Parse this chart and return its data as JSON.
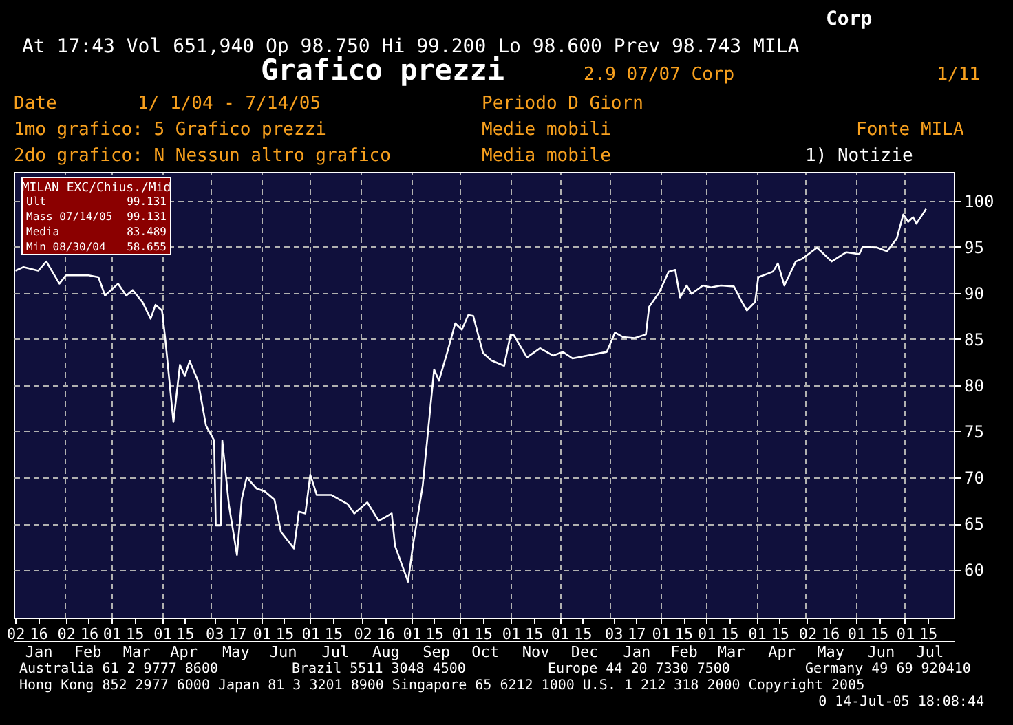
{
  "chart_data": {
    "type": "line",
    "title": "Grafico prezzi",
    "annotations": [
      "Corp",
      "At 17:43 Vol 651,940 Op 98.750 Hi 99.200 Lo 98.600 Prev 98.743 MILA",
      "2.9 07/07 Corp",
      "1/11",
      "Date",
      "1/ 1/04 - 7/14/05",
      "Periodo D Giorn",
      "1mo grafico: 5 Grafico prezzi",
      "Medie mobili",
      "Fonte MILA",
      "2do grafico: N Nessun altro grafico",
      "Media mobile",
      "1) Notizie",
      "MILAN EXC/Chius./Mid",
      "Ult",
      "99.131",
      "Mass 07/14/05",
      "99.131",
      "Media",
      "83.489",
      "Min 08/30/04",
      "58.655",
      "Australia 61 2 9777 8600",
      "Brazil 5511 3048 4500",
      "Europe 44 20 7330 7500",
      "Germany 49 69 920410",
      "Hong Kong 852 2977 6000 Japan 81 3 3201 8900 Singapore 65 6212 1000 U.S. 1 212 318 2000 Copyright 2005",
      "0 14-Jul-05 18:08:44"
    ],
    "x": [
      "2004-01-02",
      "2004-01-07",
      "2004-01-16",
      "2004-01-21",
      "2004-01-29",
      "2004-02-02",
      "2004-02-16",
      "2004-02-22",
      "2004-02-26",
      "2004-03-05",
      "2004-03-10",
      "2004-03-14",
      "2004-03-20",
      "2004-03-25",
      "2004-03-28",
      "2004-04-01",
      "2004-04-03",
      "2004-04-08",
      "2004-04-12",
      "2004-04-15",
      "2004-04-18",
      "2004-04-23",
      "2004-04-28",
      "2004-05-03",
      "2004-05-04",
      "2004-05-07",
      "2004-05-08",
      "2004-05-12",
      "2004-05-17",
      "2004-05-20",
      "2004-05-23",
      "2004-05-29",
      "2004-06-03",
      "2004-06-09",
      "2004-06-13",
      "2004-06-21",
      "2004-06-24",
      "2004-06-28",
      "2004-07-01",
      "2004-07-05",
      "2004-07-14",
      "2004-07-24",
      "2004-07-28",
      "2004-08-05",
      "2004-08-12",
      "2004-08-20",
      "2004-08-22",
      "2004-08-30",
      "2004-09-02",
      "2004-09-08",
      "2004-09-15",
      "2004-09-18",
      "2004-09-23",
      "2004-09-28",
      "2004-10-02",
      "2004-10-06",
      "2004-10-09",
      "2004-10-15",
      "2004-10-20",
      "2004-10-28",
      "2004-11-01",
      "2004-11-03",
      "2004-11-11",
      "2004-11-19",
      "2004-11-27",
      "2004-12-03",
      "2004-12-09",
      "2004-12-30",
      "2005-01-04",
      "2005-01-09",
      "2005-01-16",
      "2005-01-23",
      "2005-01-25",
      "2005-01-31",
      "2005-02-06",
      "2005-02-10",
      "2005-02-13",
      "2005-02-17",
      "2005-02-20",
      "2005-02-27",
      "2005-03-04",
      "2005-03-10",
      "2005-03-18",
      "2005-03-23",
      "2005-03-26",
      "2005-03-31",
      "2005-04-02",
      "2005-04-11",
      "2005-04-14",
      "2005-04-18",
      "2005-04-25",
      "2005-04-29",
      "2005-05-08",
      "2005-05-17",
      "2005-05-26",
      "2005-06-03",
      "2005-06-05",
      "2005-06-14",
      "2005-06-20",
      "2005-06-26",
      "2005-06-30",
      "2005-07-03",
      "2005-07-06",
      "2005-07-08",
      "2005-07-14"
    ],
    "series": [
      {
        "color": "#ffffff",
        "values": [
          92.4,
          92.8,
          92.4,
          93.4,
          91.0,
          91.9,
          91.9,
          91.7,
          89.7,
          91.0,
          89.7,
          90.3,
          89.0,
          87.2,
          88.7,
          88.1,
          85.0,
          76.0,
          82.2,
          81.0,
          82.6,
          80.5,
          75.6,
          74.0,
          64.8,
          64.8,
          74.0,
          67.1,
          61.6,
          67.7,
          70.0,
          68.8,
          68.5,
          67.6,
          64.1,
          62.3,
          66.3,
          66.1,
          70.3,
          68.1,
          68.1,
          67.1,
          66.1,
          67.3,
          65.3,
          66.1,
          62.6,
          58.7,
          62.6,
          69.1,
          81.7,
          80.5,
          83.5,
          86.7,
          86.0,
          87.6,
          87.5,
          83.5,
          82.7,
          82.1,
          85.5,
          85.4,
          83.0,
          84.0,
          83.2,
          83.6,
          82.9,
          83.6,
          85.7,
          85.2,
          85.1,
          85.5,
          88.5,
          90.0,
          92.3,
          92.5,
          89.5,
          90.8,
          89.9,
          90.8,
          90.6,
          90.8,
          90.7,
          89.0,
          88.1,
          89.0,
          91.7,
          92.3,
          93.2,
          90.8,
          93.4,
          93.7,
          94.9,
          93.4,
          94.4,
          94.2,
          95.0,
          94.9,
          94.5,
          95.9,
          98.5,
          97.7,
          98.2,
          97.5,
          99.1
        ]
      }
    ],
    "xlim": [
      "2004-01-01",
      "2005-07-31"
    ],
    "xticks": [
      {
        "value": "2004-01-02",
        "label": "02"
      },
      {
        "value": "2004-01-16",
        "label": "16"
      },
      {
        "value": "2004-02-02",
        "label": "02"
      },
      {
        "value": "2004-02-16",
        "label": "16"
      },
      {
        "value": "2004-03-01",
        "label": "01"
      },
      {
        "value": "2004-03-15",
        "label": "15"
      },
      {
        "value": "2004-04-01",
        "label": "01"
      },
      {
        "value": "2004-04-15",
        "label": "15"
      },
      {
        "value": "2004-05-03",
        "label": "03"
      },
      {
        "value": "2004-05-17",
        "label": "17"
      },
      {
        "value": "2004-06-01",
        "label": "01"
      },
      {
        "value": "2004-06-15",
        "label": "15"
      },
      {
        "value": "2004-07-01",
        "label": "01"
      },
      {
        "value": "2004-07-15",
        "label": "15"
      },
      {
        "value": "2004-08-02",
        "label": "02"
      },
      {
        "value": "2004-08-16",
        "label": "16"
      },
      {
        "value": "2004-09-01",
        "label": "01"
      },
      {
        "value": "2004-09-15",
        "label": "15"
      },
      {
        "value": "2004-10-01",
        "label": "01"
      },
      {
        "value": "2004-10-15",
        "label": "15"
      },
      {
        "value": "2004-11-01",
        "label": "01"
      },
      {
        "value": "2004-11-15",
        "label": "15"
      },
      {
        "value": "2004-12-01",
        "label": "01"
      },
      {
        "value": "2004-12-15",
        "label": "15"
      },
      {
        "value": "2005-01-03",
        "label": "03"
      },
      {
        "value": "2005-01-17",
        "label": "17"
      },
      {
        "value": "2005-02-01",
        "label": "01"
      },
      {
        "value": "2005-02-15",
        "label": "15"
      },
      {
        "value": "2005-03-01",
        "label": "01"
      },
      {
        "value": "2005-03-15",
        "label": "15"
      },
      {
        "value": "2005-04-01",
        "label": "01"
      },
      {
        "value": "2005-04-15",
        "label": "15"
      },
      {
        "value": "2005-05-02",
        "label": "02"
      },
      {
        "value": "2005-05-16",
        "label": "16"
      },
      {
        "value": "2005-06-01",
        "label": "01"
      },
      {
        "value": "2005-06-15",
        "label": "15"
      },
      {
        "value": "2005-07-01",
        "label": "01"
      },
      {
        "value": "2005-07-15",
        "label": "15"
      }
    ],
    "x2lim": [
      "2004-01-01",
      "2005-07-31"
    ],
    "x2ticks": [
      {
        "value": "2004-01-16",
        "label": "Jan"
      },
      {
        "value": "2004-02-15",
        "label": "Feb"
      },
      {
        "value": "2004-03-16",
        "label": "Mar"
      },
      {
        "value": "2004-04-14",
        "label": "Apr"
      },
      {
        "value": "2004-05-16",
        "label": "May"
      },
      {
        "value": "2004-06-14",
        "label": "Jun"
      },
      {
        "value": "2004-07-16",
        "label": "Jul"
      },
      {
        "value": "2004-08-16",
        "label": "Aug"
      },
      {
        "value": "2004-09-16",
        "label": "Sep"
      },
      {
        "value": "2004-10-16",
        "label": "Oct"
      },
      {
        "value": "2004-11-16",
        "label": "Nov"
      },
      {
        "value": "2004-12-16",
        "label": "Dec"
      },
      {
        "value": "2005-01-17",
        "label": "Jan"
      },
      {
        "value": "2005-02-15",
        "label": "Feb"
      },
      {
        "value": "2005-03-16",
        "label": "Mar"
      },
      {
        "value": "2005-04-16",
        "label": "Apr"
      },
      {
        "value": "2005-05-16",
        "label": "May"
      },
      {
        "value": "2005-06-16",
        "label": "Jun"
      },
      {
        "value": "2005-07-16",
        "label": "Jul"
      },
      {
        "value": "2004-02-01",
        "label": null
      },
      {
        "value": "2004-03-01",
        "label": null
      },
      {
        "value": "2004-04-01",
        "label": null
      },
      {
        "value": "2004-05-01",
        "label": null
      },
      {
        "value": "2004-06-01",
        "label": null
      },
      {
        "value": "2004-07-01",
        "label": null
      },
      {
        "value": "2004-08-01",
        "label": null
      },
      {
        "value": "2004-09-01",
        "label": null
      },
      {
        "value": "2004-10-01",
        "label": null
      },
      {
        "value": "2004-11-01",
        "label": null
      },
      {
        "value": "2004-12-01",
        "label": null
      },
      {
        "value": "2005-01-01",
        "label": null
      },
      {
        "value": "2005-02-01",
        "label": null
      },
      {
        "value": "2005-03-01",
        "label": null
      },
      {
        "value": "2005-04-01",
        "label": null
      },
      {
        "value": "2005-05-01",
        "label": null
      },
      {
        "value": "2005-06-01",
        "label": null
      },
      {
        "value": "2005-07-01",
        "label": null
      }
    ],
    "ylim": [
      54.8,
      103.1
    ],
    "yticks": [
      60,
      65,
      70,
      75,
      80,
      85,
      90,
      95,
      100
    ],
    "grid": true,
    "legend": false,
    "marker": "none",
    "line_style": "solid"
  }
}
